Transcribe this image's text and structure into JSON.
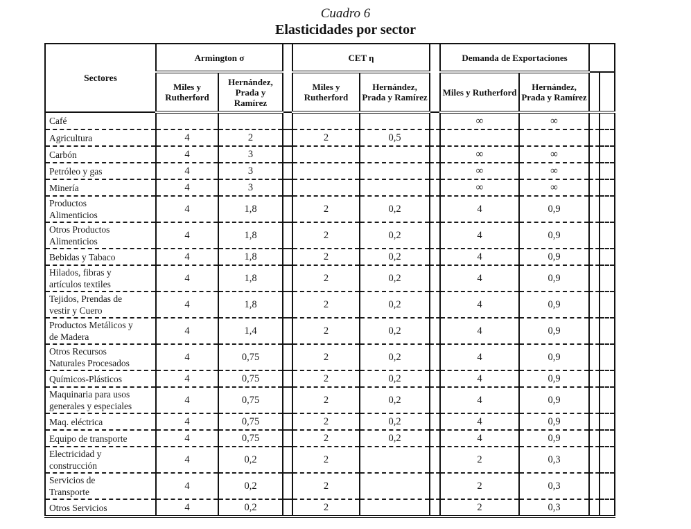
{
  "title": {
    "caption": "Cuadro 6",
    "heading": "Elasticidades por sector"
  },
  "table": {
    "sectors_col_header": "Sectores",
    "groups": [
      {
        "label": "Armington σ"
      },
      {
        "label": "CET η"
      },
      {
        "label": "Demanda de Exportaciones"
      }
    ],
    "sub_mr": "Miles y Rutherford",
    "sub_hpr": "Hernández, Prada y Ramírez",
    "rows": [
      {
        "sector": "Café",
        "armington_mr": "",
        "armington_hpr": "",
        "cet_mr": "",
        "cet_hpr": "",
        "demanda_mr": "∞",
        "demanda_hpr": "∞"
      },
      {
        "sector": "Agricultura",
        "armington_mr": "4",
        "armington_hpr": "2",
        "cet_mr": "2",
        "cet_hpr": "0,5",
        "demanda_mr": "",
        "demanda_hpr": ""
      },
      {
        "sector": "Carbón",
        "armington_mr": "4",
        "armington_hpr": "3",
        "cet_mr": "",
        "cet_hpr": "",
        "demanda_mr": "∞",
        "demanda_hpr": "∞"
      },
      {
        "sector": "Petróleo y gas",
        "armington_mr": "4",
        "armington_hpr": "3",
        "cet_mr": "",
        "cet_hpr": "",
        "demanda_mr": "∞",
        "demanda_hpr": "∞"
      },
      {
        "sector": "Minería",
        "armington_mr": "4",
        "armington_hpr": "3",
        "cet_mr": "",
        "cet_hpr": "",
        "demanda_mr": "∞",
        "demanda_hpr": "∞"
      },
      {
        "sector": "Productos\nAlimenticios",
        "armington_mr": "4",
        "armington_hpr": "1,8",
        "cet_mr": "2",
        "cet_hpr": "0,2",
        "demanda_mr": "4",
        "demanda_hpr": "0,9"
      },
      {
        "sector": "Otros Productos\nAlimenticios",
        "armington_mr": "4",
        "armington_hpr": "1,8",
        "cet_mr": "2",
        "cet_hpr": "0,2",
        "demanda_mr": "4",
        "demanda_hpr": "0,9"
      },
      {
        "sector": "Bebidas y Tabaco",
        "armington_mr": "4",
        "armington_hpr": "1,8",
        "cet_mr": "2",
        "cet_hpr": "0,2",
        "demanda_mr": "4",
        "demanda_hpr": "0,9"
      },
      {
        "sector": "Hilados, fibras y\nartículos textiles",
        "armington_mr": "4",
        "armington_hpr": "1,8",
        "cet_mr": "2",
        "cet_hpr": "0,2",
        "demanda_mr": "4",
        "demanda_hpr": "0,9"
      },
      {
        "sector": "Tejidos, Prendas de\nvestir y Cuero",
        "armington_mr": "4",
        "armington_hpr": "1,8",
        "cet_mr": "2",
        "cet_hpr": "0,2",
        "demanda_mr": "4",
        "demanda_hpr": "0,9"
      },
      {
        "sector": "Productos Metálicos y\nde Madera",
        "armington_mr": "4",
        "armington_hpr": "1,4",
        "cet_mr": "2",
        "cet_hpr": "0,2",
        "demanda_mr": "4",
        "demanda_hpr": "0,9"
      },
      {
        "sector": "Otros Recursos\nNaturales Procesados",
        "armington_mr": "4",
        "armington_hpr": "0,75",
        "cet_mr": "2",
        "cet_hpr": "0,2",
        "demanda_mr": "4",
        "demanda_hpr": "0,9"
      },
      {
        "sector": "Químicos-Plásticos",
        "armington_mr": "4",
        "armington_hpr": "0,75",
        "cet_mr": "2",
        "cet_hpr": "0,2",
        "demanda_mr": "4",
        "demanda_hpr": "0,9"
      },
      {
        "sector": "Maquinaria para usos\ngenerales y especiales",
        "armington_mr": "4",
        "armington_hpr": "0,75",
        "cet_mr": "2",
        "cet_hpr": "0,2",
        "demanda_mr": "4",
        "demanda_hpr": "0,9"
      },
      {
        "sector": "Maq. eléctrica",
        "armington_mr": "4",
        "armington_hpr": "0,75",
        "cet_mr": "2",
        "cet_hpr": "0,2",
        "demanda_mr": "4",
        "demanda_hpr": "0,9"
      },
      {
        "sector": "Equipo de transporte",
        "armington_mr": "4",
        "armington_hpr": "0,75",
        "cet_mr": "2",
        "cet_hpr": "0,2",
        "demanda_mr": "4",
        "demanda_hpr": "0,9"
      },
      {
        "sector": "Electricidad y\nconstrucción",
        "armington_mr": "4",
        "armington_hpr": "0,2",
        "cet_mr": "2",
        "cet_hpr": "",
        "demanda_mr": "2",
        "demanda_hpr": "0,3"
      },
      {
        "sector": "Servicios de\nTransporte",
        "armington_mr": "4",
        "armington_hpr": "0,2",
        "cet_mr": "2",
        "cet_hpr": "",
        "demanda_mr": "2",
        "demanda_hpr": "0,3"
      },
      {
        "sector": "Otros Servicios",
        "armington_mr": "4",
        "armington_hpr": "0,2",
        "cet_mr": "2",
        "cet_hpr": "",
        "demanda_mr": "2",
        "demanda_hpr": "0,3"
      }
    ]
  }
}
